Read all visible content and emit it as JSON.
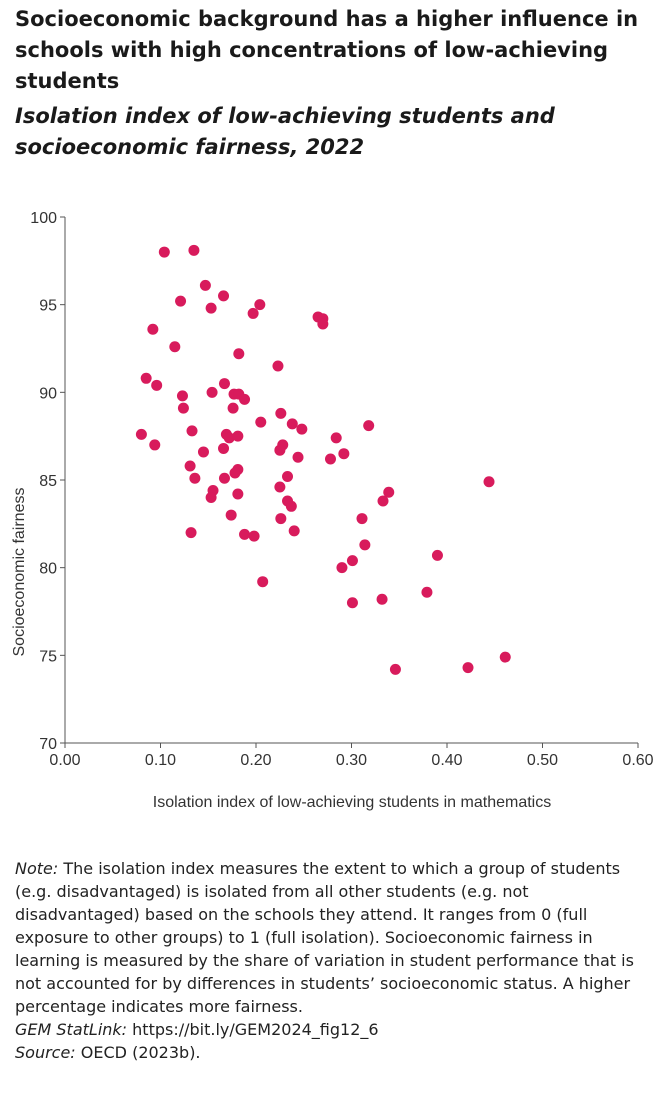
{
  "title": "Socioeconomic background has a higher influence in schools with high concentrations of low-achieving students",
  "subtitle": "Isolation index of low-achieving students and socioeconomic fairness, 2022",
  "colors": {
    "point": "#d81b5c",
    "axis": "#555555",
    "text": "#333333"
  },
  "chart_data": {
    "type": "scatter",
    "xlabel": "Isolation index of low-achieving students in mathematics",
    "ylabel": "Socioeconomic fairness",
    "xlim": [
      0,
      0.6
    ],
    "ylim": [
      70,
      100
    ],
    "x_ticks": [
      "0.00",
      "0.10",
      "0.20",
      "0.30",
      "0.40",
      "0.50",
      "0.60"
    ],
    "y_ticks": [
      "70",
      "75",
      "80",
      "85",
      "90",
      "95",
      "100"
    ],
    "grid": false,
    "points": [
      [
        0.104,
        98.0
      ],
      [
        0.135,
        98.1
      ],
      [
        0.147,
        96.1
      ],
      [
        0.166,
        95.5
      ],
      [
        0.121,
        95.2
      ],
      [
        0.153,
        94.8
      ],
      [
        0.204,
        95.0
      ],
      [
        0.197,
        94.5
      ],
      [
        0.092,
        93.6
      ],
      [
        0.265,
        94.3
      ],
      [
        0.27,
        94.2
      ],
      [
        0.27,
        93.9
      ],
      [
        0.115,
        92.6
      ],
      [
        0.182,
        92.2
      ],
      [
        0.223,
        91.5
      ],
      [
        0.085,
        90.8
      ],
      [
        0.096,
        90.4
      ],
      [
        0.167,
        90.5
      ],
      [
        0.154,
        90.0
      ],
      [
        0.123,
        89.8
      ],
      [
        0.177,
        89.9
      ],
      [
        0.182,
        89.9
      ],
      [
        0.188,
        89.6
      ],
      [
        0.124,
        89.1
      ],
      [
        0.176,
        89.1
      ],
      [
        0.226,
        88.8
      ],
      [
        0.205,
        88.3
      ],
      [
        0.238,
        88.2
      ],
      [
        0.248,
        87.9
      ],
      [
        0.318,
        88.1
      ],
      [
        0.08,
        87.6
      ],
      [
        0.133,
        87.8
      ],
      [
        0.169,
        87.6
      ],
      [
        0.172,
        87.4
      ],
      [
        0.181,
        87.5
      ],
      [
        0.094,
        87.0
      ],
      [
        0.228,
        87.0
      ],
      [
        0.284,
        87.4
      ],
      [
        0.166,
        86.8
      ],
      [
        0.225,
        86.7
      ],
      [
        0.145,
        86.6
      ],
      [
        0.292,
        86.5
      ],
      [
        0.244,
        86.3
      ],
      [
        0.278,
        86.2
      ],
      [
        0.131,
        85.8
      ],
      [
        0.181,
        85.6
      ],
      [
        0.178,
        85.4
      ],
      [
        0.233,
        85.2
      ],
      [
        0.136,
        85.1
      ],
      [
        0.167,
        85.1
      ],
      [
        0.444,
        84.9
      ],
      [
        0.225,
        84.6
      ],
      [
        0.155,
        84.4
      ],
      [
        0.153,
        84.0
      ],
      [
        0.181,
        84.2
      ],
      [
        0.339,
        84.3
      ],
      [
        0.233,
        83.8
      ],
      [
        0.237,
        83.5
      ],
      [
        0.333,
        83.8
      ],
      [
        0.174,
        83.0
      ],
      [
        0.226,
        82.8
      ],
      [
        0.311,
        82.8
      ],
      [
        0.24,
        82.1
      ],
      [
        0.132,
        82.0
      ],
      [
        0.188,
        81.9
      ],
      [
        0.198,
        81.8
      ],
      [
        0.314,
        81.3
      ],
      [
        0.39,
        80.7
      ],
      [
        0.301,
        80.4
      ],
      [
        0.29,
        80.0
      ],
      [
        0.207,
        79.2
      ],
      [
        0.379,
        78.6
      ],
      [
        0.332,
        78.2
      ],
      [
        0.301,
        78.0
      ],
      [
        0.461,
        74.9
      ],
      [
        0.422,
        74.3
      ],
      [
        0.346,
        74.2
      ]
    ]
  },
  "notes": {
    "note_label": "Note:",
    "note_text": " The isolation index measures the extent to which a group of students (e.g. disadvantaged) is isolated from all other students (e.g. not disadvantaged) based on the schools they attend. It ranges from 0 (full exposure to other groups) to 1 (full isolation). Socioeconomic fairness in learning is measured by the share of variation in student performance that is not accounted for by differences in students’ socioeconomic status. A higher percentage indicates more fairness.",
    "statlink_label": "GEM StatLink:",
    "statlink_text": " https://bit.ly/GEM2024_fig12_6",
    "source_label": "Source:",
    "source_text": " OECD (2023b)."
  }
}
